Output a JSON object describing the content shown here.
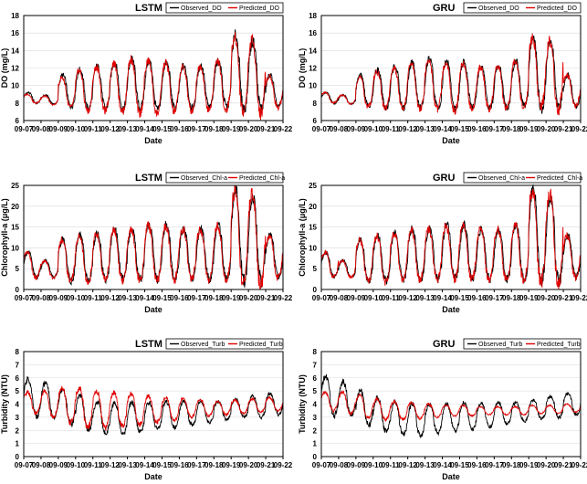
{
  "colors": {
    "observed": "#000000",
    "predicted": "#e00000"
  },
  "chart_data": [
    {
      "type": "line",
      "title": "LSTM",
      "xlabel": "Date",
      "ylabel": "DO (mg/L)",
      "ylim": [
        6,
        18
      ],
      "yticks": [
        6,
        8,
        10,
        12,
        14,
        16,
        18
      ],
      "x": [
        "09-07",
        "09-08",
        "09-09",
        "09-10",
        "09-11",
        "09-12",
        "09-13",
        "09-14",
        "09-15",
        "09-16",
        "09-17",
        "09-18",
        "09-19",
        "09-20",
        "09-21",
        "09-22"
      ],
      "legend": [
        "Observed_DO",
        "Predicted_DO"
      ],
      "legend_position": "top-right",
      "grid": true,
      "daily_mean_observed": [
        8.6,
        8.4,
        9.4,
        9.6,
        9.8,
        10.0,
        10.2,
        10.0,
        10.0,
        9.8,
        9.9,
        10.2,
        11.5,
        11.2,
        9.4,
        9.0
      ],
      "daily_amplitude_observed": [
        0.6,
        0.5,
        1.8,
        2.2,
        2.4,
        2.6,
        2.8,
        2.8,
        2.6,
        2.4,
        2.4,
        2.6,
        4.2,
        3.8,
        1.8,
        1.0
      ],
      "daily_mean_predicted": [
        8.5,
        8.3,
        9.2,
        9.4,
        9.6,
        9.8,
        9.9,
        9.8,
        9.8,
        9.6,
        9.7,
        10.0,
        11.2,
        11.0,
        9.3,
        8.9
      ],
      "daily_amplitude_predicted": [
        0.5,
        0.5,
        1.7,
        2.3,
        2.5,
        2.8,
        3.1,
        3.0,
        2.8,
        2.5,
        2.5,
        2.8,
        4.2,
        4.2,
        1.8,
        1.0
      ]
    },
    {
      "type": "line",
      "title": "GRU",
      "xlabel": "Date",
      "ylabel": "DO (mg/L)",
      "ylim": [
        6,
        18
      ],
      "yticks": [
        6,
        8,
        10,
        12,
        14,
        16,
        18
      ],
      "x": [
        "09-07",
        "09-08",
        "09-09",
        "09-10",
        "09-11",
        "09-12",
        "09-13",
        "09-14",
        "09-15",
        "09-16",
        "09-17",
        "09-18",
        "09-19",
        "09-20",
        "09-21",
        "09-22"
      ],
      "legend": [
        "Observed_DO",
        "Predicted_DO"
      ],
      "legend_position": "top-right",
      "grid": true,
      "daily_mean_observed": [
        8.6,
        8.4,
        9.4,
        9.6,
        9.8,
        10.0,
        10.2,
        10.0,
        10.0,
        9.8,
        9.9,
        10.2,
        11.5,
        11.2,
        9.4,
        9.0
      ],
      "daily_amplitude_observed": [
        0.6,
        0.5,
        1.8,
        2.2,
        2.4,
        2.6,
        2.8,
        2.8,
        2.6,
        2.4,
        2.4,
        2.6,
        4.2,
        3.8,
        1.8,
        1.0
      ],
      "daily_mean_predicted": [
        8.6,
        8.4,
        9.3,
        9.5,
        9.7,
        9.9,
        10.1,
        9.9,
        9.9,
        9.7,
        9.8,
        10.1,
        11.4,
        11.1,
        9.4,
        9.0
      ],
      "daily_amplitude_predicted": [
        0.6,
        0.5,
        1.7,
        2.1,
        2.3,
        2.6,
        2.8,
        2.8,
        2.6,
        2.4,
        2.4,
        2.6,
        4.0,
        4.0,
        1.8,
        1.0
      ]
    },
    {
      "type": "line",
      "title": "LSTM",
      "xlabel": "Date",
      "ylabel": "Chlorophyll-a (μg/L)",
      "ylim": [
        0,
        25
      ],
      "yticks": [
        0,
        5,
        10,
        15,
        20,
        25
      ],
      "x": [
        "09-07",
        "09-08",
        "09-09",
        "09-10",
        "09-11",
        "09-12",
        "09-13",
        "09-14",
        "09-15",
        "09-16",
        "09-17",
        "09-18",
        "09-19",
        "09-20",
        "09-21",
        "09-22"
      ],
      "legend": [
        "Observed_Chl-a",
        "Predicted_Chl-a"
      ],
      "legend_position": "top-right",
      "grid": true,
      "daily_mean_observed": [
        6,
        5,
        7,
        7.5,
        8,
        8.5,
        8.5,
        9,
        9,
        8.5,
        8.5,
        9,
        13,
        12,
        8,
        7
      ],
      "daily_amplitude_observed": [
        3,
        2,
        5,
        5.5,
        5.5,
        6,
        6,
        6.5,
        6.5,
        6,
        6,
        6.5,
        11,
        10,
        5,
        4
      ],
      "daily_mean_predicted": [
        5.8,
        4.8,
        7,
        7.2,
        7.8,
        8.2,
        8.4,
        8.8,
        8.8,
        8.4,
        8.4,
        8.8,
        12.5,
        12,
        7.8,
        6.8
      ],
      "daily_amplitude_predicted": [
        3,
        2,
        5,
        5.5,
        5.5,
        6,
        6,
        6.5,
        6.5,
        6,
        6,
        6.5,
        11,
        11,
        5,
        4
      ]
    },
    {
      "type": "line",
      "title": "GRU",
      "xlabel": "Date",
      "ylabel": "Chlorophyll-a (μg/L)",
      "ylim": [
        0,
        25
      ],
      "yticks": [
        0,
        5,
        10,
        15,
        20,
        25
      ],
      "x": [
        "09-07",
        "09-08",
        "09-09",
        "09-10",
        "09-11",
        "09-12",
        "09-13",
        "09-14",
        "09-15",
        "09-16",
        "09-17",
        "09-18",
        "09-19",
        "09-20",
        "09-21",
        "09-22"
      ],
      "legend": [
        "Observed_Chl-a",
        "Predicted_Chl-a"
      ],
      "legend_position": "top-right",
      "grid": true,
      "daily_mean_observed": [
        6,
        5,
        7,
        7.5,
        8,
        8.5,
        8.5,
        9,
        9,
        8.5,
        8.5,
        9,
        13,
        12,
        8,
        7
      ],
      "daily_amplitude_observed": [
        3,
        2,
        5,
        5.5,
        5.5,
        6,
        6,
        6.5,
        6.5,
        6,
        6,
        6.5,
        11,
        10,
        5,
        4
      ],
      "daily_mean_predicted": [
        6,
        4.9,
        7,
        7.3,
        7.9,
        8.3,
        8.4,
        8.9,
        8.9,
        8.4,
        8.4,
        8.9,
        12.8,
        12,
        7.9,
        6.9
      ],
      "daily_amplitude_predicted": [
        3,
        2,
        5,
        5.5,
        5.5,
        6,
        6,
        6.5,
        6.5,
        6,
        6,
        6.5,
        11,
        11,
        5,
        4
      ]
    },
    {
      "type": "line",
      "title": "LSTM",
      "xlabel": "Date",
      "ylabel": "Turbidity (NTU)",
      "ylim": [
        0,
        8
      ],
      "yticks": [
        0,
        1,
        2,
        3,
        4,
        5,
        6,
        7,
        8
      ],
      "x": [
        "09-07",
        "09-08",
        "09-09",
        "09-10",
        "09-11",
        "09-12",
        "09-13",
        "09-14",
        "09-15",
        "09-16",
        "09-17",
        "09-18",
        "09-19",
        "09-20",
        "09-21",
        "09-22"
      ],
      "legend": [
        "Observed_Turb",
        "Predicted_Turb"
      ],
      "legend_position": "top-right",
      "grid": true,
      "daily_mean_observed": [
        4.5,
        4.3,
        3.8,
        3.3,
        3.0,
        2.9,
        3.0,
        3.1,
        3.2,
        3.3,
        3.4,
        3.5,
        3.7,
        3.8,
        4.0,
        4.1
      ],
      "daily_amplitude_observed": [
        1.4,
        1.3,
        1.3,
        1.3,
        1.2,
        1.2,
        1.1,
        1.0,
        1.0,
        0.9,
        0.8,
        0.7,
        0.7,
        0.8,
        0.8,
        0.8
      ],
      "daily_mean_predicted": [
        4.1,
        4.0,
        3.9,
        3.7,
        3.6,
        3.6,
        3.6,
        3.6,
        3.6,
        3.7,
        3.7,
        3.7,
        3.8,
        3.9,
        4.0,
        4.0
      ],
      "daily_amplitude_predicted": [
        0.8,
        1.0,
        1.3,
        1.5,
        1.4,
        1.3,
        1.2,
        1.0,
        0.9,
        0.7,
        0.6,
        0.5,
        0.5,
        0.5,
        0.5,
        0.5
      ]
    },
    {
      "type": "line",
      "title": "GRU",
      "xlabel": "Date",
      "ylabel": "Turbidity (NTU)",
      "ylim": [
        0,
        8
      ],
      "yticks": [
        0,
        1,
        2,
        3,
        4,
        5,
        6,
        7,
        8
      ],
      "x": [
        "09-07",
        "09-08",
        "09-09",
        "09-10",
        "09-11",
        "09-12",
        "09-13",
        "09-14",
        "09-15",
        "09-16",
        "09-17",
        "09-18",
        "09-19",
        "09-20",
        "09-21",
        "09-22"
      ],
      "legend": [
        "Observed_Turb",
        "Predicted_Turb"
      ],
      "legend_position": "top-right",
      "grid": true,
      "daily_mean_observed": [
        4.6,
        4.4,
        3.7,
        3.2,
        2.9,
        2.8,
        2.9,
        3.0,
        3.1,
        3.2,
        3.3,
        3.4,
        3.6,
        3.8,
        4.0,
        4.1
      ],
      "daily_amplitude_observed": [
        1.5,
        1.3,
        1.3,
        1.3,
        1.2,
        1.2,
        1.1,
        1.0,
        1.0,
        0.9,
        0.8,
        0.7,
        0.7,
        0.8,
        0.8,
        0.8
      ],
      "daily_mean_predicted": [
        4.2,
        4.1,
        3.8,
        3.6,
        3.5,
        3.5,
        3.5,
        3.5,
        3.5,
        3.5,
        3.5,
        3.5,
        3.6,
        3.6,
        3.7,
        3.7
      ],
      "daily_amplitude_predicted": [
        0.7,
        0.8,
        0.9,
        0.8,
        0.7,
        0.6,
        0.5,
        0.4,
        0.4,
        0.3,
        0.3,
        0.3,
        0.3,
        0.3,
        0.3,
        0.3
      ]
    }
  ]
}
